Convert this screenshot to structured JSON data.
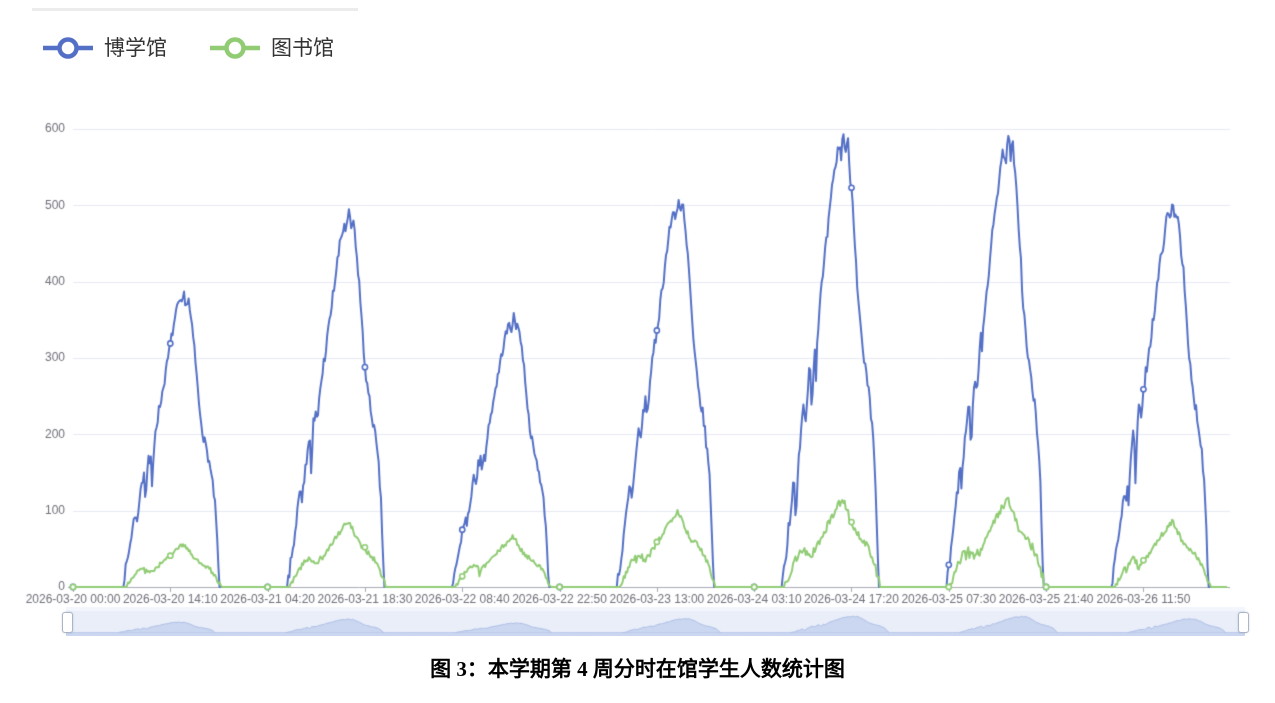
{
  "caption": "图 3：本学期第 4 周分时在馆学生人数统计图",
  "legend": {
    "items": [
      {
        "label": "博学馆",
        "color": "#5470c6"
      },
      {
        "label": "图书馆",
        "color": "#91cc75"
      }
    ]
  },
  "colors": {
    "axis_line": "#a7abb3",
    "axis_label": "#6e7079",
    "gridline": "#e6eaf2",
    "plot_background": "#ffffff",
    "slider_track": "#e9eef9",
    "slider_area_fill": "#cbd7f0",
    "slider_area_stroke": "#aebee6",
    "slider_handle_border": "#a9b5c9"
  },
  "chart_data": {
    "type": "line",
    "title": "",
    "xlabel": "",
    "ylabel": "",
    "legend_position": "top-left",
    "grid": "horizontal-only",
    "ylim": [
      0,
      600
    ],
    "yticks": [
      0,
      100,
      200,
      300,
      400,
      500,
      600
    ],
    "x_start": "2026-03-20 00:00",
    "x_end": "2026-03-27 00:00",
    "interval_minutes": 10,
    "tick_interval_minutes": 850,
    "x_tick_labels": [
      "2026-03-20 00:00",
      "2026-03-20 14:10",
      "2026-03-21 04:20",
      "2026-03-21 18:30",
      "2026-03-22 08:40",
      "2026-03-22 22:50",
      "2026-03-23 13:00",
      "2026-03-24 03:10",
      "2026-03-24 17:20",
      "2026-03-25 07:30",
      "2026-03-25 21:40",
      "2026-03-26 11:50"
    ],
    "days": [
      "2026-03-20",
      "2026-03-21",
      "2026-03-22",
      "2026-03-23",
      "2026-03-24",
      "2026-03-25",
      "2026-03-26"
    ],
    "noise_seed": 7,
    "series": [
      {
        "name": "博学馆",
        "color": "#5470c6",
        "daily_peaks": [
          385,
          490,
          355,
          510,
          595,
          590,
          505
        ],
        "noise": 0.018,
        "morning_dip_chance": 0.1,
        "profile": [
          [
            7.2,
            0
          ],
          [
            7.5,
            0.04
          ],
          [
            8.0,
            0.1
          ],
          [
            8.6,
            0.19
          ],
          [
            9.1,
            0.26
          ],
          [
            9.35,
            0.22
          ],
          [
            9.6,
            0.28
          ],
          [
            10.0,
            0.34
          ],
          [
            10.4,
            0.41
          ],
          [
            10.65,
            0.37
          ],
          [
            11.0,
            0.45
          ],
          [
            11.3,
            0.48
          ],
          [
            11.55,
            0.44
          ],
          [
            12.0,
            0.53
          ],
          [
            12.5,
            0.6
          ],
          [
            13.0,
            0.66
          ],
          [
            13.5,
            0.73
          ],
          [
            14.0,
            0.8
          ],
          [
            14.5,
            0.87
          ],
          [
            15.0,
            0.93
          ],
          [
            15.5,
            0.97
          ],
          [
            15.8,
            0.95
          ],
          [
            16.1,
            1.0
          ],
          [
            16.5,
            0.96
          ],
          [
            16.8,
            0.98
          ],
          [
            17.2,
            0.9
          ],
          [
            17.6,
            0.83
          ],
          [
            18.0,
            0.72
          ],
          [
            18.3,
            0.63
          ],
          [
            18.7,
            0.56
          ],
          [
            19.0,
            0.51
          ],
          [
            19.4,
            0.47
          ],
          [
            19.8,
            0.43
          ],
          [
            20.2,
            0.37
          ],
          [
            20.6,
            0.3
          ],
          [
            20.9,
            0.2
          ],
          [
            21.1,
            0.1
          ],
          [
            21.3,
            0
          ]
        ]
      },
      {
        "name": "图书馆",
        "color": "#91cc75",
        "daily_peaks": [
          56,
          85,
          65,
          100,
          115,
          115,
          85
        ],
        "noise": 0.045,
        "morning_dip_chance": 0.06,
        "profile": [
          [
            7.5,
            0
          ],
          [
            8.0,
            0.08
          ],
          [
            8.5,
            0.18
          ],
          [
            9.0,
            0.28
          ],
          [
            9.5,
            0.36
          ],
          [
            10.0,
            0.41
          ],
          [
            10.5,
            0.43
          ],
          [
            10.9,
            0.38
          ],
          [
            11.3,
            0.34
          ],
          [
            11.8,
            0.4
          ],
          [
            12.3,
            0.48
          ],
          [
            12.9,
            0.56
          ],
          [
            13.5,
            0.65
          ],
          [
            14.1,
            0.74
          ],
          [
            14.7,
            0.83
          ],
          [
            15.3,
            0.92
          ],
          [
            16.0,
            1.0
          ],
          [
            16.4,
            0.95
          ],
          [
            16.8,
            0.85
          ],
          [
            17.2,
            0.76
          ],
          [
            17.7,
            0.66
          ],
          [
            18.1,
            0.62
          ],
          [
            18.6,
            0.57
          ],
          [
            19.1,
            0.52
          ],
          [
            19.6,
            0.46
          ],
          [
            20.1,
            0.38
          ],
          [
            20.6,
            0.27
          ],
          [
            21.0,
            0.16
          ],
          [
            21.4,
            0.05
          ],
          [
            21.55,
            0
          ]
        ]
      }
    ]
  }
}
